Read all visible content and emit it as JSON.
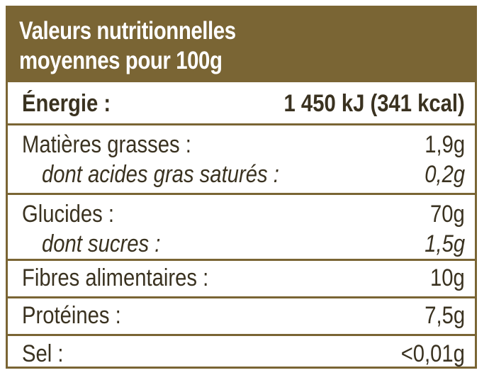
{
  "title": {
    "line1": "Valeurs nutritionnelles",
    "line2": "moyennes pour 100g"
  },
  "rows": {
    "energy": {
      "label": "Énergie :",
      "value": "1 450 kJ (341 kcal)"
    },
    "fat": {
      "label": "Matières grasses :",
      "value": "1,9g"
    },
    "saturated": {
      "label": "dont acides gras saturés :",
      "value": "0,2g"
    },
    "carbs": {
      "label": "Glucides :",
      "value": "70g"
    },
    "sugars": {
      "label": "dont sucres :",
      "value": "1,5g"
    },
    "fibre": {
      "label": "Fibres alimentaires :",
      "value": "10g"
    },
    "protein": {
      "label": "Protéines :",
      "value": "7,5g"
    },
    "salt": {
      "label": "Sel :",
      "value": "<0,01g"
    }
  },
  "colors": {
    "brand": "#7a6534",
    "text": "#3a3220",
    "header_text": "#ffffff"
  }
}
